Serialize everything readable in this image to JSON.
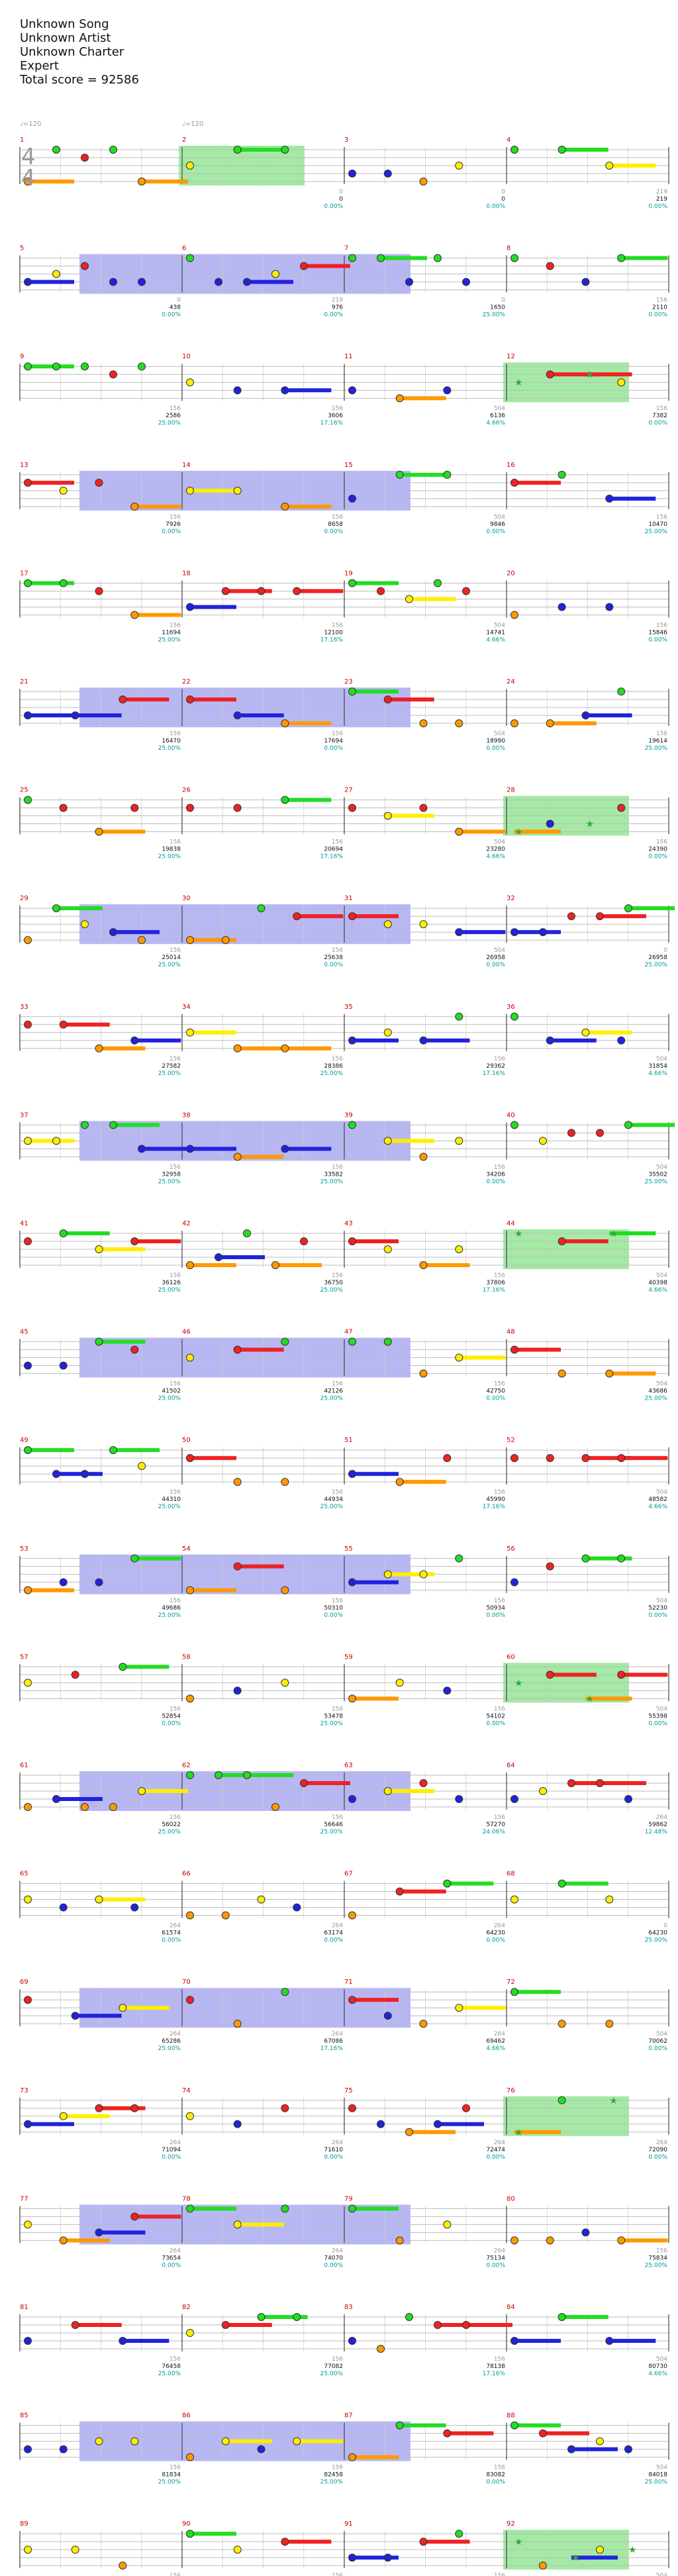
{
  "header": {
    "song": "Unknown Song",
    "artist": "Unknown Artist",
    "charter": "Unknown Charter",
    "difficulty": "Expert",
    "total_score": "Total score = 92586"
  },
  "time_signature": {
    "numerator": "4",
    "denominator": "4"
  },
  "tempo_markers": [
    "♩=120",
    "♩=120"
  ],
  "lane_colors": {
    "green": "#22dd22",
    "red": "#ee2222",
    "yellow": "#ffee00",
    "blue": "#2222dd",
    "orange": "#ff9900",
    "purple": "#9932cc",
    "star": "#33aa33"
  },
  "section_colors": {
    "star_power": "#7de07d",
    "solo": "#7b7bee"
  },
  "measures": [
    {
      "n": 1,
      "score": "",
      "pct": "",
      "sub": ""
    },
    {
      "n": 2,
      "score": "0",
      "pct": "0.00%",
      "sub": "0"
    },
    {
      "n": 3,
      "score": "0",
      "pct": "0.00%",
      "sub": "0"
    },
    {
      "n": 4,
      "score": "219",
      "pct": "0.00%",
      "sub": "219"
    },
    {
      "n": 4,
      "score": "438",
      "pct": "0.00%",
      "sub": "0"
    },
    {
      "n": 6,
      "score": "976",
      "pct": "0.00%",
      "sub": "219"
    },
    {
      "n": 7,
      "score": "1650",
      "pct": "25.00%",
      "sub": "0"
    },
    {
      "n": 8,
      "score": "2110",
      "pct": "0.00%",
      "sub": "156"
    },
    {
      "n": 8,
      "score": "2586",
      "pct": "25.00%",
      "sub": "156"
    },
    {
      "n": 10,
      "score": "3606",
      "pct": "17.16%",
      "sub": "156"
    },
    {
      "n": 11,
      "score": "6136",
      "pct": "4.66%",
      "sub": "504"
    },
    {
      "n": 12,
      "score": "7382",
      "pct": "0.00%",
      "sub": "156"
    },
    {
      "n": 12,
      "score": "7926",
      "pct": "0.00%",
      "sub": "156"
    },
    {
      "n": 14,
      "score": "8658",
      "pct": "0.00%",
      "sub": "156"
    },
    {
      "n": 15,
      "score": "9846",
      "pct": "0.00%",
      "sub": "504"
    },
    {
      "n": 16,
      "score": "10470",
      "pct": "25.00%",
      "sub": "156"
    },
    {
      "n": 16,
      "score": "11694",
      "pct": "25.00%",
      "sub": "156"
    },
    {
      "n": 18,
      "score": "12100",
      "pct": "17.16%",
      "sub": "156"
    },
    {
      "n": 19,
      "score": "14741",
      "pct": "4.66%",
      "sub": "504"
    },
    {
      "n": 20,
      "score": "15846",
      "pct": "0.00%",
      "sub": "156"
    },
    {
      "n": 20,
      "score": "16470",
      "pct": "25.00%",
      "sub": "156"
    },
    {
      "n": 22,
      "score": "17694",
      "pct": "0.00%",
      "sub": "156"
    },
    {
      "n": 23,
      "score": "18990",
      "pct": "0.00%",
      "sub": "504"
    },
    {
      "n": 24,
      "score": "19614",
      "pct": "25.00%",
      "sub": "156"
    },
    {
      "n": 24,
      "score": "19838",
      "pct": "25.00%",
      "sub": "156"
    },
    {
      "n": 26,
      "score": "20694",
      "pct": "17.16%",
      "sub": "156"
    },
    {
      "n": 27,
      "score": "23280",
      "pct": "4.66%",
      "sub": "504"
    },
    {
      "n": 28,
      "score": "24390",
      "pct": "0.00%",
      "sub": "156"
    },
    {
      "n": 28,
      "score": "25014",
      "pct": "25.00%",
      "sub": "156"
    },
    {
      "n": 30,
      "score": "25638",
      "pct": "0.00%",
      "sub": "156"
    },
    {
      "n": 31,
      "score": "26958",
      "pct": "0.00%",
      "sub": "504"
    },
    {
      "n": 32,
      "score": "26958",
      "pct": "25.00%",
      "sub": "0"
    },
    {
      "n": 32,
      "score": "27582",
      "pct": "25.00%",
      "sub": "156"
    },
    {
      "n": 34,
      "score": "28386",
      "pct": "25.00%",
      "sub": "156"
    },
    {
      "n": 35,
      "score": "29362",
      "pct": "17.16%",
      "sub": "156"
    },
    {
      "n": 36,
      "score": "31854",
      "pct": "4.66%",
      "sub": "504"
    },
    {
      "n": 36,
      "score": "32958",
      "pct": "25.00%",
      "sub": "156"
    },
    {
      "n": 38,
      "score": "33582",
      "pct": "25.00%",
      "sub": "156"
    },
    {
      "n": 39,
      "score": "34206",
      "pct": "0.00%",
      "sub": "156"
    },
    {
      "n": 40,
      "score": "35502",
      "pct": "25.00%",
      "sub": "504"
    },
    {
      "n": 40,
      "score": "36126",
      "pct": "25.00%",
      "sub": "156"
    },
    {
      "n": 42,
      "score": "36750",
      "pct": "25.00%",
      "sub": "156"
    },
    {
      "n": 43,
      "score": "37806",
      "pct": "17.16%",
      "sub": "156"
    },
    {
      "n": 44,
      "score": "40398",
      "pct": "4.66%",
      "sub": "504"
    },
    {
      "n": 44,
      "score": "41502",
      "pct": "25.00%",
      "sub": "156"
    },
    {
      "n": 46,
      "score": "42126",
      "pct": "25.00%",
      "sub": "156"
    },
    {
      "n": 47,
      "score": "42750",
      "pct": "0.00%",
      "sub": "156"
    },
    {
      "n": 48,
      "score": "43686",
      "pct": "25.00%",
      "sub": "504"
    },
    {
      "n": 48,
      "score": "44310",
      "pct": "25.00%",
      "sub": "156"
    },
    {
      "n": 50,
      "score": "44934",
      "pct": "25.00%",
      "sub": "156"
    },
    {
      "n": 51,
      "score": "45990",
      "pct": "17.16%",
      "sub": "156"
    },
    {
      "n": 52,
      "score": "48582",
      "pct": "4.66%",
      "sub": "504"
    },
    {
      "n": 52,
      "score": "49686",
      "pct": "25.00%",
      "sub": "156"
    },
    {
      "n": 54,
      "score": "50310",
      "pct": "0.00%",
      "sub": "156"
    },
    {
      "n": 55,
      "score": "50934",
      "pct": "0.00%",
      "sub": "156"
    },
    {
      "n": 56,
      "score": "52230",
      "pct": "0.00%",
      "sub": "504"
    },
    {
      "n": 56,
      "score": "52854",
      "pct": "0.00%",
      "sub": "156"
    },
    {
      "n": 58,
      "score": "53478",
      "pct": "25.00%",
      "sub": "156"
    },
    {
      "n": 59,
      "score": "54102",
      "pct": "0.00%",
      "sub": "156"
    },
    {
      "n": 60,
      "score": "55398",
      "pct": "0.00%",
      "sub": "504"
    },
    {
      "n": 60,
      "score": "56022",
      "pct": "25.00%",
      "sub": "156"
    },
    {
      "n": 62,
      "score": "56646",
      "pct": "25.00%",
      "sub": "156"
    },
    {
      "n": 63,
      "score": "57270",
      "pct": "24.06%",
      "sub": "156"
    },
    {
      "n": 64,
      "score": "59862",
      "pct": "12.48%",
      "sub": "264"
    },
    {
      "n": 64,
      "score": "61574",
      "pct": "0.00%",
      "sub": "264"
    },
    {
      "n": 66,
      "score": "63174",
      "pct": "0.00%",
      "sub": "264"
    },
    {
      "n": 67,
      "score": "64230",
      "pct": "0.00%",
      "sub": "264"
    },
    {
      "n": 68,
      "score": "64230",
      "pct": "25.00%",
      "sub": "0"
    },
    {
      "n": 68,
      "score": "65286",
      "pct": "25.00%",
      "sub": "264"
    },
    {
      "n": 70,
      "score": "67086",
      "pct": "17.16%",
      "sub": "264"
    },
    {
      "n": 71,
      "score": "69462",
      "pct": "4.66%",
      "sub": "264"
    },
    {
      "n": 72,
      "score": "70062",
      "pct": "0.00%",
      "sub": "504"
    },
    {
      "n": 72,
      "score": "71094",
      "pct": "0.00%",
      "sub": "264"
    },
    {
      "n": 74,
      "score": "71610",
      "pct": "0.00%",
      "sub": "264"
    },
    {
      "n": 75,
      "score": "72474",
      "pct": "0.00%",
      "sub": "264"
    },
    {
      "n": 76,
      "score": "72090",
      "pct": "0.00%",
      "sub": "264"
    },
    {
      "n": 76,
      "score": "73654",
      "pct": "0.00%",
      "sub": "264"
    },
    {
      "n": 78,
      "score": "74070",
      "pct": "0.00%",
      "sub": "264"
    },
    {
      "n": 79,
      "score": "75134",
      "pct": "0.00%",
      "sub": "264"
    },
    {
      "n": 80,
      "score": "75834",
      "pct": "25.00%",
      "sub": "156"
    },
    {
      "n": 80,
      "score": "76458",
      "pct": "25.00%",
      "sub": "156"
    },
    {
      "n": 82,
      "score": "77082",
      "pct": "25.00%",
      "sub": "156"
    },
    {
      "n": 83,
      "score": "78138",
      "pct": "17.16%",
      "sub": "156"
    },
    {
      "n": 84,
      "score": "80730",
      "pct": "4.66%",
      "sub": "504"
    },
    {
      "n": 84,
      "score": "81834",
      "pct": "25.00%",
      "sub": "156"
    },
    {
      "n": 86,
      "score": "82458",
      "pct": "25.00%",
      "sub": "156"
    },
    {
      "n": 87,
      "score": "83082",
      "pct": "0.00%",
      "sub": "156"
    },
    {
      "n": 88,
      "score": "84018",
      "pct": "25.00%",
      "sub": "504"
    },
    {
      "n": 88,
      "score": "84642",
      "pct": "25.00%",
      "sub": "156"
    },
    {
      "n": 90,
      "score": "85266",
      "pct": "25.00%",
      "sub": "156"
    },
    {
      "n": 91,
      "score": "86322",
      "pct": "17.16%",
      "sub": "156"
    },
    {
      "n": 92,
      "score": "88914",
      "pct": "4.66%",
      "sub": "504"
    },
    {
      "n": 92,
      "score": "90018",
      "pct": "25.00%",
      "sub": "156"
    },
    {
      "n": 94,
      "score": "90642",
      "pct": "0.00%",
      "sub": "156"
    },
    {
      "n": 95,
      "score": "91266",
      "pct": "0.00%",
      "sub": "156"
    },
    {
      "n": 96,
      "score": "92570",
      "pct": "0.00%",
      "sub": "504"
    },
    {
      "n": 96,
      "score": "92586",
      "pct": "0.00%",
      "sub": "16"
    }
  ]
}
